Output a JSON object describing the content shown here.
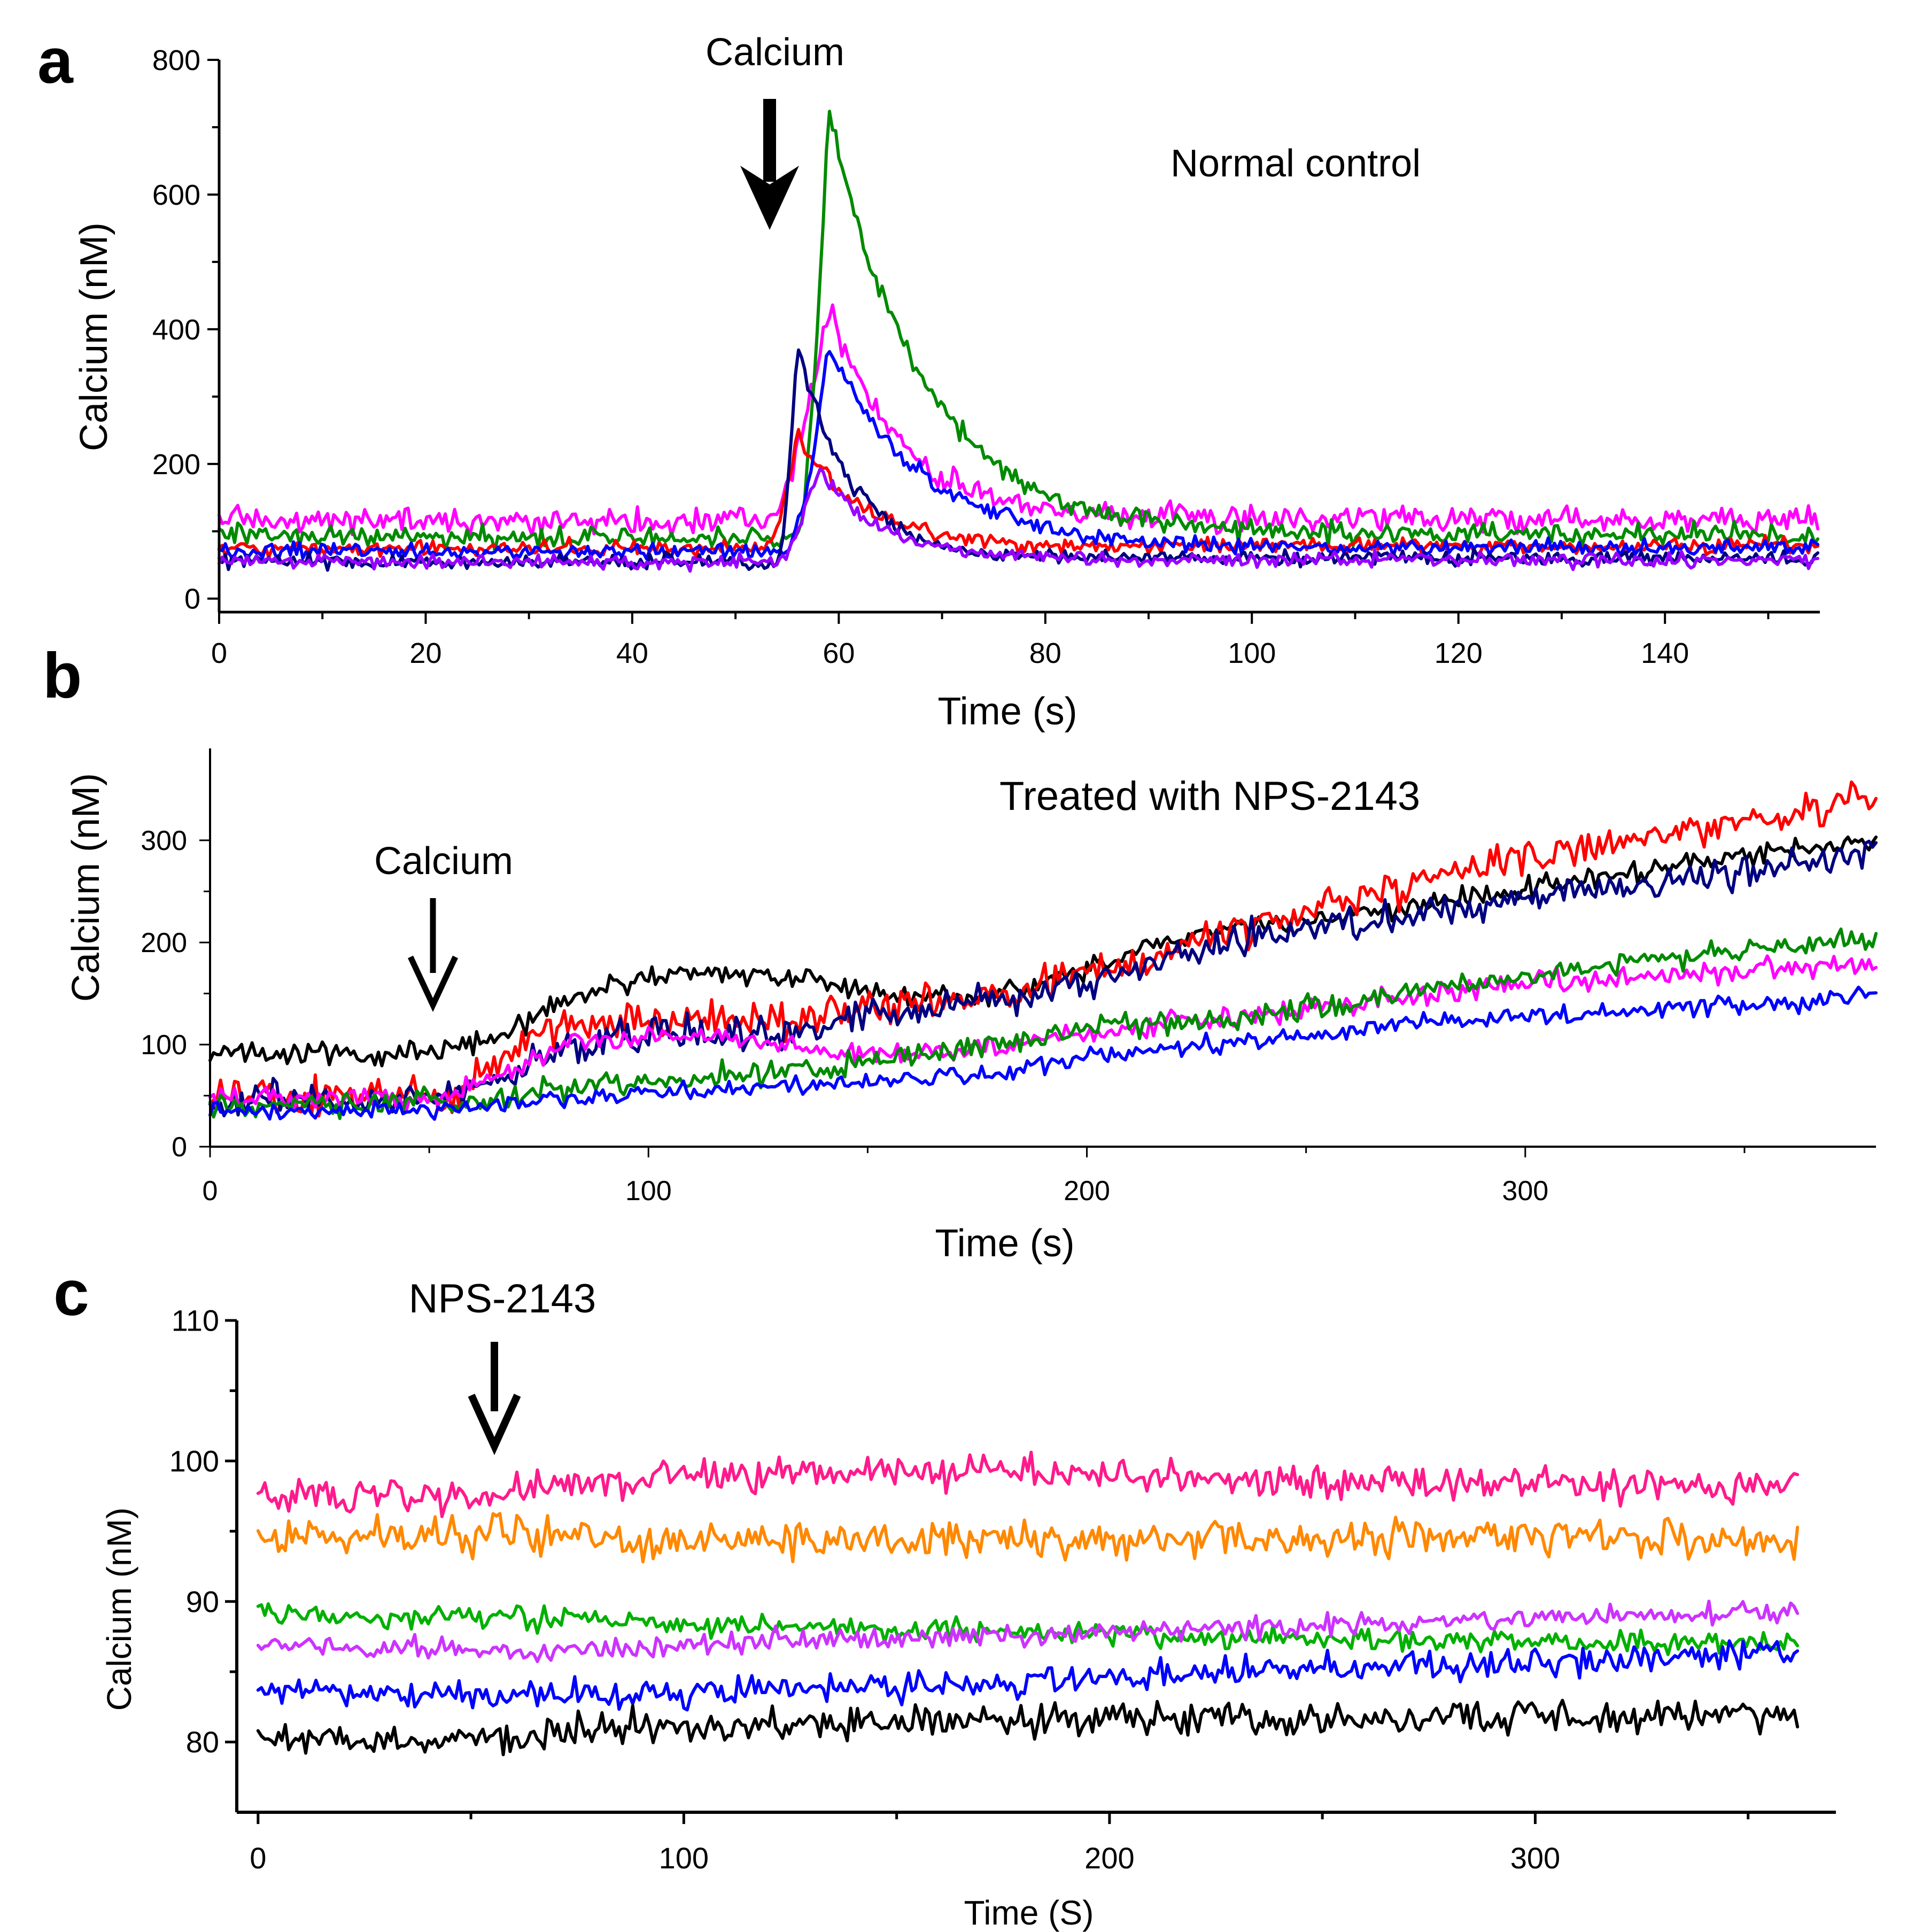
{
  "chart_data": [
    {
      "id": "a",
      "panel_label": "a",
      "type": "line",
      "title": "Normal control",
      "xlabel": "Time (s)",
      "ylabel": "Calcium (nM)",
      "xlim": [
        0,
        155
      ],
      "ylim": [
        -20,
        800
      ],
      "xticks": [
        0,
        20,
        40,
        60,
        80,
        100,
        120,
        140
      ],
      "yticks": [
        0,
        200,
        400,
        600,
        800
      ],
      "annotations": [
        {
          "text": "Calcium",
          "x": 53
        }
      ],
      "series": [
        {
          "name": "magenta",
          "color": "#ff00ff",
          "baseline": 115,
          "end": 118,
          "onset": 53,
          "peak_x": 59,
          "peak": 435,
          "decay": 7,
          "noise": 14
        },
        {
          "name": "green",
          "color": "#008a00",
          "baseline": 92,
          "end": 95,
          "onset": 56,
          "peak_x": 59,
          "peak": 730,
          "decay": 9,
          "noise": 12
        },
        {
          "name": "red",
          "color": "#ff0000",
          "baseline": 75,
          "end": 78,
          "onset": 53,
          "peak_x": 56,
          "peak": 245,
          "decay": 6,
          "noise": 9
        },
        {
          "name": "blue",
          "color": "#0000ff",
          "baseline": 70,
          "end": 76,
          "onset": 55,
          "peak_x": 59,
          "peak": 375,
          "decay": 9,
          "noise": 9
        },
        {
          "name": "navy",
          "color": "#000080",
          "baseline": 55,
          "end": 60,
          "onset": 54,
          "peak_x": 56,
          "peak": 380,
          "decay": 5,
          "noise": 8
        },
        {
          "name": "purple",
          "color": "#9900ff",
          "baseline": 55,
          "end": 58,
          "onset": 54,
          "peak_x": 58,
          "peak": 195,
          "decay": 6,
          "noise": 8
        }
      ]
    },
    {
      "id": "b",
      "panel_label": "b",
      "type": "line",
      "title": "Treated with NPS-2143",
      "xlabel": "Time (s)",
      "ylabel": "Calcium (nM)",
      "xlim": [
        0,
        380
      ],
      "ylim": [
        0,
        390
      ],
      "xticks": [
        0,
        100,
        200,
        300
      ],
      "yticks": [
        0,
        100,
        200,
        300
      ],
      "annotations": [
        {
          "text": "Calcium",
          "x": 50
        }
      ],
      "series": [
        {
          "name": "black",
          "color": "#000000",
          "points": [
            [
              0,
              92
            ],
            [
              50,
              92
            ],
            [
              65,
              105
            ],
            [
              85,
              150
            ],
            [
              105,
              170
            ],
            [
              135,
              165
            ],
            [
              150,
              150
            ],
            [
              175,
              145
            ],
            [
              200,
              175
            ],
            [
              220,
              205
            ],
            [
              240,
              215
            ],
            [
              280,
              240
            ],
            [
              320,
              265
            ],
            [
              350,
              285
            ],
            [
              380,
              300
            ]
          ],
          "noise": 8
        },
        {
          "name": "red",
          "color": "#ff0000",
          "points": [
            [
              0,
              50
            ],
            [
              55,
              50
            ],
            [
              75,
              110
            ],
            [
              90,
              125
            ],
            [
              110,
              120
            ],
            [
              130,
              125
            ],
            [
              150,
              135
            ],
            [
              180,
              150
            ],
            [
              210,
              180
            ],
            [
              240,
              220
            ],
            [
              270,
              255
            ],
            [
              300,
              285
            ],
            [
              340,
              310
            ],
            [
              380,
              340
            ]
          ],
          "noise": 14
        },
        {
          "name": "navy",
          "color": "#000080",
          "points": [
            [
              0,
              45
            ],
            [
              55,
              48
            ],
            [
              80,
              95
            ],
            [
              100,
              110
            ],
            [
              130,
              110
            ],
            [
              150,
              130
            ],
            [
              180,
              145
            ],
            [
              210,
              170
            ],
            [
              240,
              210
            ],
            [
              280,
              230
            ],
            [
              320,
              255
            ],
            [
              350,
              270
            ],
            [
              380,
              285
            ]
          ],
          "noise": 12
        },
        {
          "name": "magenta",
          "color": "#ff00ff",
          "points": [
            [
              0,
              48
            ],
            [
              55,
              48
            ],
            [
              78,
              95
            ],
            [
              100,
              110
            ],
            [
              120,
              105
            ],
            [
              140,
              95
            ],
            [
              160,
              90
            ],
            [
              190,
              105
            ],
            [
              220,
              120
            ],
            [
              260,
              140
            ],
            [
              300,
              160
            ],
            [
              340,
              170
            ],
            [
              380,
              180
            ]
          ],
          "noise": 8
        },
        {
          "name": "green",
          "color": "#008a00",
          "points": [
            [
              0,
              40
            ],
            [
              60,
              45
            ],
            [
              90,
              60
            ],
            [
              120,
              70
            ],
            [
              160,
              85
            ],
            [
              200,
              115
            ],
            [
              240,
              130
            ],
            [
              280,
              155
            ],
            [
              320,
              180
            ],
            [
              360,
              195
            ],
            [
              380,
              205
            ]
          ],
          "noise": 9
        },
        {
          "name": "blue",
          "color": "#0000ff",
          "points": [
            [
              0,
              35
            ],
            [
              60,
              38
            ],
            [
              100,
              52
            ],
            [
              140,
              62
            ],
            [
              180,
              72
            ],
            [
              200,
              90
            ],
            [
              230,
              100
            ],
            [
              270,
              120
            ],
            [
              320,
              132
            ],
            [
              360,
              140
            ],
            [
              380,
              150
            ]
          ],
          "noise": 7
        }
      ]
    },
    {
      "id": "c",
      "panel_label": "c",
      "type": "line",
      "title": "",
      "xlabel": "Time (S)",
      "ylabel": "Calcium (nM)",
      "xlim": [
        -5,
        370
      ],
      "ylim": [
        75,
        110
      ],
      "xticks": [
        0,
        100,
        200,
        300
      ],
      "yticks": [
        80,
        90,
        100,
        110
      ],
      "annotations": [
        {
          "text": "NPS-2143",
          "x": 59
        }
      ],
      "series": [
        {
          "name": "pink",
          "color": "#ff1a8c",
          "points": [
            [
              0,
              97.6
            ],
            [
              55,
              97.4
            ],
            [
              70,
              98.4
            ],
            [
              120,
              99
            ],
            [
              180,
              99.2
            ],
            [
              240,
              98.6
            ],
            [
              300,
              98.2
            ],
            [
              360,
              98.4
            ]
          ],
          "noise": 0.9
        },
        {
          "name": "orange",
          "color": "#ff8800",
          "points": [
            [
              0,
              94.6
            ],
            [
              60,
              94.6
            ],
            [
              120,
              94.4
            ],
            [
              180,
              94.2
            ],
            [
              240,
              94.4
            ],
            [
              300,
              94.8
            ],
            [
              360,
              94.4
            ]
          ],
          "noise": 1.0
        },
        {
          "name": "green",
          "color": "#00b000",
          "points": [
            [
              0,
              89.2
            ],
            [
              60,
              88.8
            ],
            [
              120,
              88.2
            ],
            [
              180,
              87.8
            ],
            [
              240,
              87.4
            ],
            [
              300,
              87.2
            ],
            [
              360,
              87
            ]
          ],
          "noise": 0.6
        },
        {
          "name": "magenta",
          "color": "#cc33ff",
          "points": [
            [
              0,
              87
            ],
            [
              60,
              86.4
            ],
            [
              120,
              87.2
            ],
            [
              180,
              87.6
            ],
            [
              240,
              88.2
            ],
            [
              300,
              88.8
            ],
            [
              360,
              89.2
            ]
          ],
          "noise": 0.6
        },
        {
          "name": "blue",
          "color": "#0000ff",
          "points": [
            [
              0,
              83.6
            ],
            [
              60,
              83.2
            ],
            [
              120,
              83.6
            ],
            [
              180,
              84.2
            ],
            [
              240,
              85.2
            ],
            [
              300,
              85.6
            ],
            [
              360,
              86.4
            ]
          ],
          "noise": 0.8
        },
        {
          "name": "black",
          "color": "#000000",
          "points": [
            [
              0,
              80.4
            ],
            [
              55,
              80
            ],
            [
              70,
              80.8
            ],
            [
              120,
              81.2
            ],
            [
              180,
              81.6
            ],
            [
              240,
              81.6
            ],
            [
              300,
              81.8
            ],
            [
              360,
              82
            ]
          ],
          "noise": 0.9
        }
      ]
    }
  ]
}
